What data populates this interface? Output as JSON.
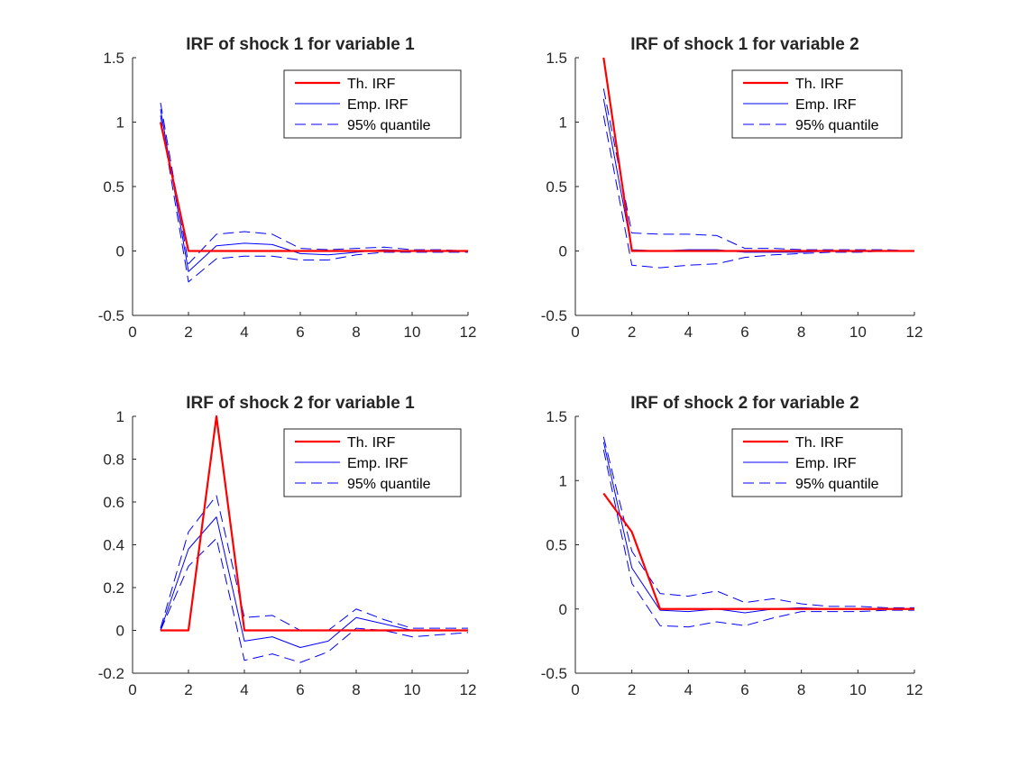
{
  "chart_data": [
    {
      "type": "line",
      "title": "IRF of shock 1 for variable 1",
      "xlabel": "",
      "ylabel": "",
      "xlim": [
        0,
        12
      ],
      "ylim": [
        -0.5,
        1.5
      ],
      "xticks": [
        "0",
        "2",
        "4",
        "6",
        "8",
        "10",
        "12"
      ],
      "yticks": [
        "-0.5",
        "0",
        "0.5",
        "1",
        "1.5"
      ],
      "legend_position": "top-right",
      "x": [
        1,
        2,
        3,
        4,
        5,
        6,
        7,
        8,
        9,
        10,
        11,
        12
      ],
      "series": [
        {
          "name": "Th. IRF",
          "color": "#ff0000",
          "style": "solid-thick",
          "values": [
            1,
            0,
            0,
            0,
            0,
            0,
            0,
            0,
            0,
            0,
            0,
            0
          ]
        },
        {
          "name": "Emp. IRF",
          "color": "#0000ff",
          "style": "solid",
          "values": [
            1.1,
            -0.16,
            0.04,
            0.06,
            0.05,
            -0.02,
            -0.03,
            -0.01,
            0.01,
            0.0,
            0.0,
            0.0
          ]
        },
        {
          "name": "95% quantile",
          "color": "#0000ff",
          "style": "dashed",
          "values": [
            1.15,
            -0.1,
            0.13,
            0.15,
            0.13,
            0.02,
            0.01,
            0.02,
            0.03,
            0.01,
            0.01,
            0.0
          ]
        },
        {
          "name": "",
          "color": "#0000ff",
          "style": "dashed",
          "values": [
            1.05,
            -0.24,
            -0.06,
            -0.04,
            -0.04,
            -0.07,
            -0.07,
            -0.03,
            -0.01,
            -0.01,
            -0.01,
            -0.01
          ]
        }
      ]
    },
    {
      "type": "line",
      "title": "IRF of shock 1 for variable 2",
      "xlabel": "",
      "ylabel": "",
      "xlim": [
        0,
        12
      ],
      "ylim": [
        -0.5,
        1.5
      ],
      "xticks": [
        "0",
        "2",
        "4",
        "6",
        "8",
        "10",
        "12"
      ],
      "yticks": [
        "-0.5",
        "0",
        "0.5",
        "1",
        "1.5"
      ],
      "legend_position": "top-right",
      "x": [
        1,
        2,
        3,
        4,
        5,
        6,
        7,
        8,
        9,
        10,
        11,
        12
      ],
      "series": [
        {
          "name": "Th. IRF",
          "color": "#ff0000",
          "style": "solid-thick",
          "values": [
            1.5,
            0,
            0,
            0,
            0,
            0,
            0,
            0,
            0,
            0,
            0,
            0
          ]
        },
        {
          "name": "Emp. IRF",
          "color": "#0000ff",
          "style": "solid",
          "values": [
            1.18,
            0.01,
            0.0,
            0.01,
            0.01,
            -0.01,
            -0.01,
            -0.01,
            0.0,
            0.0,
            0.0,
            0.0
          ]
        },
        {
          "name": "95% quantile",
          "color": "#0000ff",
          "style": "dashed",
          "values": [
            1.26,
            0.14,
            0.13,
            0.13,
            0.12,
            0.02,
            0.02,
            0.01,
            0.01,
            0.01,
            0.01,
            0.0
          ]
        },
        {
          "name": "",
          "color": "#0000ff",
          "style": "dashed",
          "values": [
            1.05,
            -0.11,
            -0.13,
            -0.11,
            -0.1,
            -0.05,
            -0.03,
            -0.02,
            -0.01,
            -0.01,
            0.0,
            0.0
          ]
        }
      ]
    },
    {
      "type": "line",
      "title": "IRF of shock 2 for variable 1",
      "xlabel": "",
      "ylabel": "",
      "xlim": [
        0,
        12
      ],
      "ylim": [
        -0.2,
        1
      ],
      "xticks": [
        "0",
        "2",
        "4",
        "6",
        "8",
        "10",
        "12"
      ],
      "yticks": [
        "-0.2",
        "0",
        "0.2",
        "0.4",
        "0.6",
        "0.8",
        "1"
      ],
      "legend_position": "top-right",
      "x": [
        1,
        2,
        3,
        4,
        5,
        6,
        7,
        8,
        9,
        10,
        11,
        12
      ],
      "series": [
        {
          "name": "Th. IRF",
          "color": "#ff0000",
          "style": "solid-thick",
          "values": [
            0,
            0,
            1,
            0,
            0,
            0,
            0,
            0,
            0,
            0,
            0,
            0
          ]
        },
        {
          "name": "Emp. IRF",
          "color": "#0000ff",
          "style": "solid",
          "values": [
            0.0,
            0.38,
            0.53,
            -0.05,
            -0.03,
            -0.08,
            -0.05,
            0.06,
            0.03,
            0.0,
            0.0,
            0.0
          ]
        },
        {
          "name": "95% quantile",
          "color": "#0000ff",
          "style": "dashed",
          "values": [
            0.01,
            0.46,
            0.63,
            0.06,
            0.07,
            0.0,
            0.0,
            0.1,
            0.05,
            0.01,
            0.01,
            0.01
          ]
        },
        {
          "name": "",
          "color": "#0000ff",
          "style": "dashed",
          "values": [
            0.0,
            0.3,
            0.43,
            -0.14,
            -0.11,
            -0.15,
            -0.1,
            0.01,
            0.0,
            -0.03,
            -0.02,
            -0.01
          ]
        }
      ]
    },
    {
      "type": "line",
      "title": "IRF of shock 2 for variable 2",
      "xlabel": "",
      "ylabel": "",
      "xlim": [
        0,
        12
      ],
      "ylim": [
        -0.5,
        1.5
      ],
      "xticks": [
        "0",
        "2",
        "4",
        "6",
        "8",
        "10",
        "12"
      ],
      "yticks": [
        "-0.5",
        "0",
        "0.5",
        "1",
        "1.5"
      ],
      "legend_position": "top-right",
      "x": [
        1,
        2,
        3,
        4,
        5,
        6,
        7,
        8,
        9,
        10,
        11,
        12
      ],
      "series": [
        {
          "name": "Th. IRF",
          "color": "#ff0000",
          "style": "solid-thick",
          "values": [
            0.9,
            0.6,
            0,
            0,
            0,
            0,
            0,
            0,
            0,
            0,
            0,
            0
          ]
        },
        {
          "name": "Emp. IRF",
          "color": "#0000ff",
          "style": "solid",
          "values": [
            1.3,
            0.32,
            -0.01,
            -0.02,
            0.0,
            -0.03,
            0.0,
            0.01,
            0.0,
            0.0,
            0.0,
            0.0
          ]
        },
        {
          "name": "95% quantile",
          "color": "#0000ff",
          "style": "dashed",
          "values": [
            1.34,
            0.45,
            0.12,
            0.1,
            0.14,
            0.05,
            0.08,
            0.04,
            0.02,
            0.02,
            0.01,
            0.01
          ]
        },
        {
          "name": "",
          "color": "#0000ff",
          "style": "dashed",
          "values": [
            1.24,
            0.2,
            -0.13,
            -0.14,
            -0.1,
            -0.13,
            -0.07,
            -0.02,
            -0.02,
            -0.02,
            -0.01,
            -0.01
          ]
        }
      ]
    }
  ]
}
